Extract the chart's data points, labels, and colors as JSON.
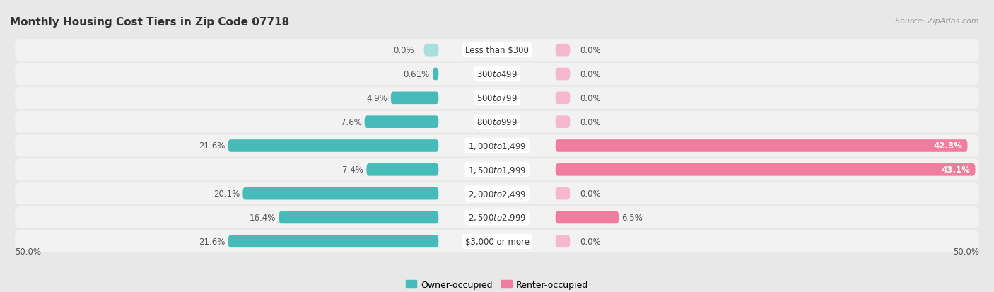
{
  "title": "Monthly Housing Cost Tiers in Zip Code 07718",
  "source": "Source: ZipAtlas.com",
  "categories": [
    "Less than $300",
    "$300 to $499",
    "$500 to $799",
    "$800 to $999",
    "$1,000 to $1,499",
    "$1,500 to $1,999",
    "$2,000 to $2,499",
    "$2,500 to $2,999",
    "$3,000 or more"
  ],
  "owner_values": [
    0.0,
    0.61,
    4.9,
    7.6,
    21.6,
    7.4,
    20.1,
    16.4,
    21.6
  ],
  "renter_values": [
    0.0,
    0.0,
    0.0,
    0.0,
    42.3,
    43.1,
    0.0,
    6.5,
    0.0
  ],
  "owner_color": "#45BCBA",
  "renter_color": "#F07CA0",
  "owner_color_light": "#A8DEDE",
  "renter_color_light": "#F5B8CF",
  "bg_color": "#e8e8e8",
  "row_bg_color": "#f2f2f2",
  "row_alt_color": "#e8e8e8",
  "axis_limit": 50.0,
  "label_fontsize": 8.5,
  "title_fontsize": 11,
  "legend_fontsize": 9,
  "value_label_fontsize": 8.5
}
